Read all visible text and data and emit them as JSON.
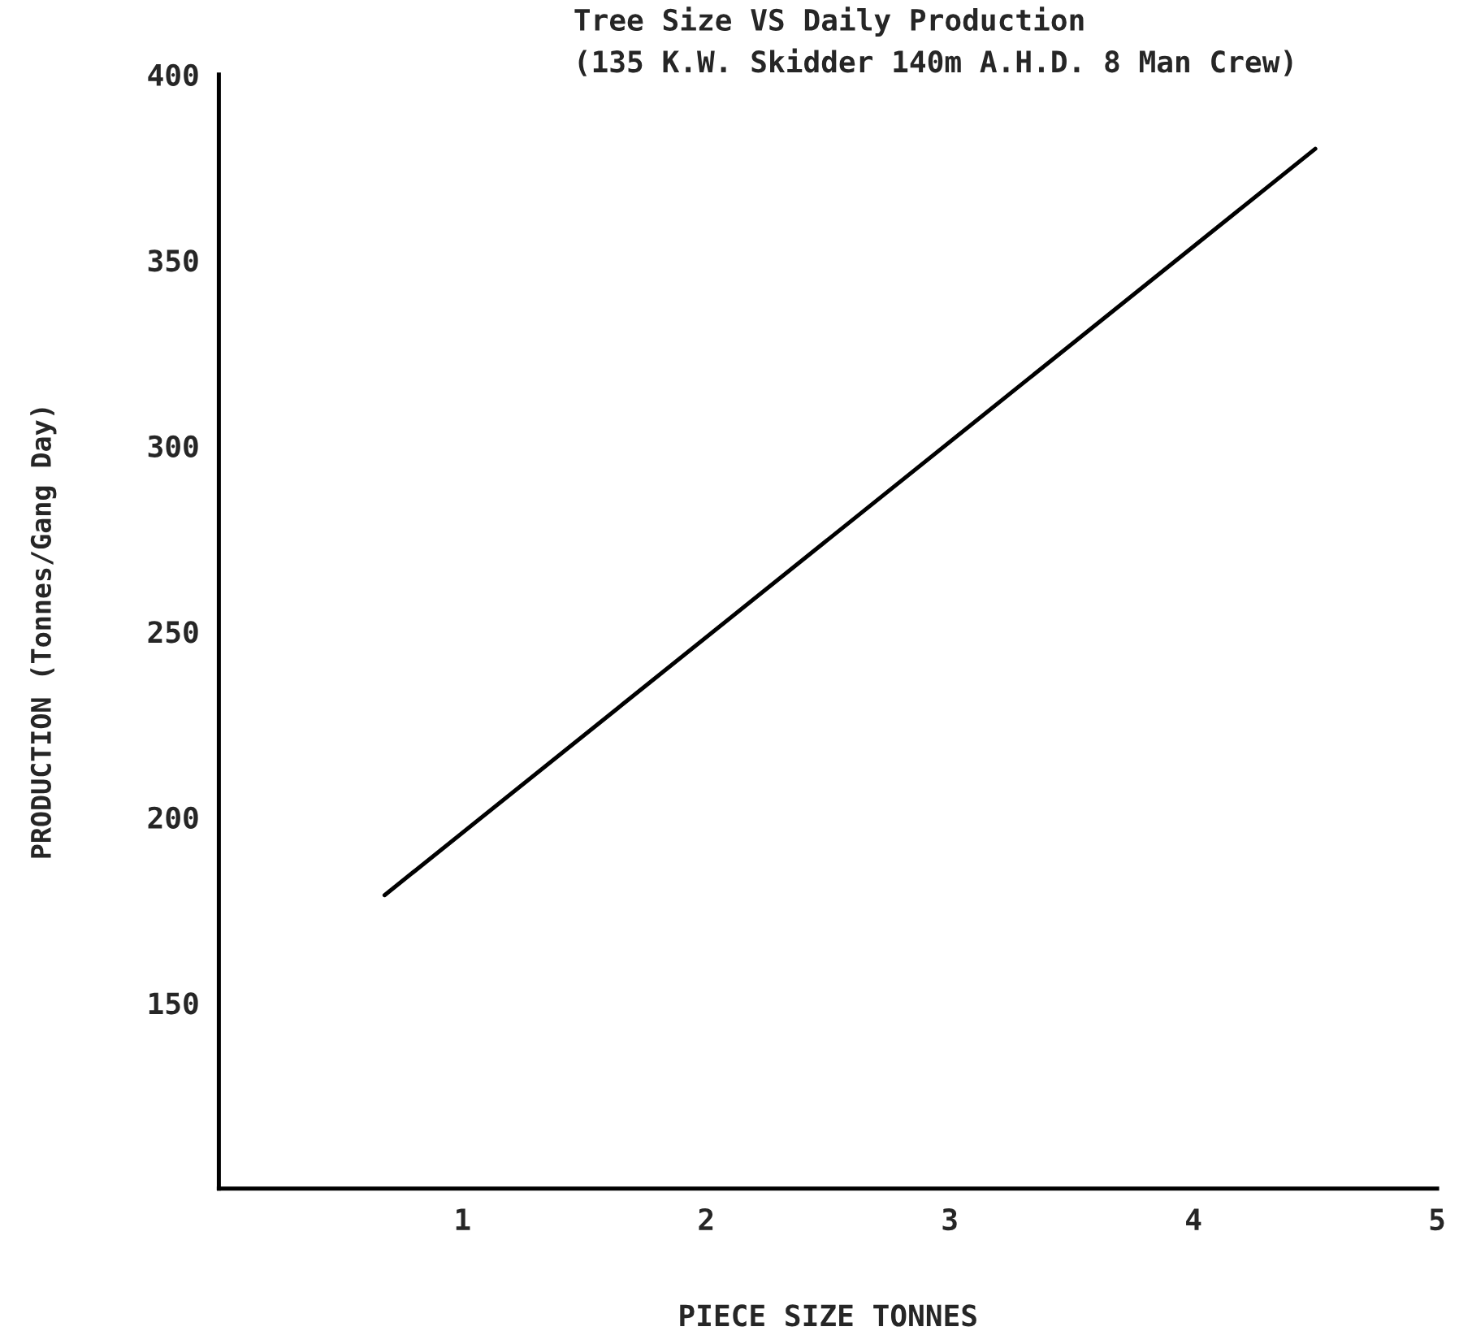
{
  "chart_data": {
    "type": "line",
    "title": "Tree Size VS Daily Production\n(135 K.W. Skidder 140m A.H.D. 8 Man Crew)",
    "xlabel": "PIECE SIZE TONNES",
    "ylabel": "PRODUCTION (Tonnes/Gang Day)",
    "series": [
      {
        "color": "#000000",
        "x": [
          0.68,
          4.5
        ],
        "values": [
          179,
          380
        ]
      }
    ],
    "xlim": [
      0,
      5
    ],
    "xticks": [
      1,
      2,
      3,
      4,
      5
    ],
    "ylim": [
      100,
      400
    ],
    "yticks": [
      150,
      200,
      250,
      300,
      350,
      400
    ],
    "grid": false,
    "legend": false,
    "marker": "none",
    "line_style": "solid"
  }
}
